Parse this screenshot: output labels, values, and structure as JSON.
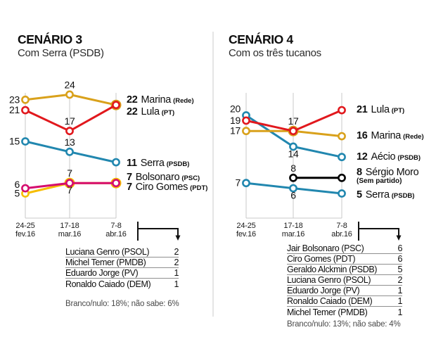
{
  "chart_data": [
    {
      "type": "line",
      "title": "CENÁRIO 3",
      "subtitle": "Com Serra (PSDB)",
      "x_tick_labels": [
        [
          "24-25",
          "fev.16"
        ],
        [
          "17-18",
          "mar.16"
        ],
        [
          "7-8",
          "abr.16"
        ]
      ],
      "ylim": [
        0,
        26
      ],
      "grid": "vertical",
      "series": [
        {
          "name": "Serra",
          "party": "PSDB",
          "color": "#2187af",
          "values": [
            15,
            13,
            11
          ],
          "point_labels": [
            {
              "text": "15",
              "pos": "left"
            },
            {
              "text": "13",
              "pos": "above"
            },
            null
          ]
        },
        {
          "name": "Ciro Gomes",
          "party": "PDT",
          "color": "#f6bd00",
          "values": [
            5,
            7,
            7
          ],
          "point_labels": [
            {
              "text": "5",
              "pos": "left"
            },
            {
              "text": "7",
              "pos": "below"
            },
            null
          ]
        },
        {
          "name": "Bolsonaro",
          "party": "PSC",
          "color": "#d50c6e",
          "values": [
            6,
            7,
            7
          ],
          "point_labels": [
            {
              "text": "6",
              "pos": "left",
              "dy": -5
            },
            {
              "text": "7",
              "pos": "above"
            },
            null
          ]
        },
        {
          "name": "Marina",
          "party": "Rede",
          "color": "#d9a11b",
          "values": [
            23,
            24,
            22
          ],
          "point_labels": [
            {
              "text": "23",
              "pos": "left"
            },
            {
              "text": "24",
              "pos": "above"
            },
            null
          ]
        },
        {
          "name": "Lula",
          "party": "PT",
          "color": "#e1181d",
          "values": [
            21,
            17,
            22
          ],
          "point_labels": [
            {
              "text": "21",
              "pos": "left"
            },
            {
              "text": "17",
              "pos": "above"
            },
            null
          ]
        }
      ],
      "end_labels": [
        {
          "value": "22",
          "name": "Marina",
          "party": "(Rede)"
        },
        {
          "value": "22",
          "name": "Lula",
          "party": "(PT)"
        },
        {
          "value": "11",
          "name": "Serra",
          "party": "(PSDB)"
        },
        {
          "value": "7",
          "name": "Bolsonaro",
          "party": "(PSC)"
        },
        {
          "value": "7",
          "name": "Ciro Gomes",
          "party": "(PDT)"
        }
      ],
      "table": {
        "rows": [
          [
            "Luciana Genro (PSOL)",
            "2"
          ],
          [
            "Michel Temer (PMDB)",
            "2"
          ],
          [
            "Eduardo Jorge (PV)",
            "1"
          ],
          [
            "Ronaldo Caiado (DEM)",
            "1"
          ]
        ]
      },
      "note": "Branco/nulo: 18%; não sabe: 6%"
    },
    {
      "type": "line",
      "title": "CENÁRIO 4",
      "subtitle": "Com os três tucanos",
      "x_tick_labels": [
        [
          "24-25",
          "fev.16"
        ],
        [
          "17-18",
          "mar.16"
        ],
        [
          "7-8",
          "abr.16"
        ]
      ],
      "ylim": [
        0,
        26
      ],
      "grid": "vertical",
      "series": [
        {
          "name": "Aécio",
          "party": "PSDB",
          "color": "#2187af",
          "values": [
            20,
            14,
            12
          ],
          "point_labels": [
            {
              "text": "20",
              "pos": "left",
              "dy": -9
            },
            {
              "text": "14",
              "pos": "below"
            },
            null
          ]
        },
        {
          "name": "Serra",
          "party": "PSDB",
          "color": "#2187af",
          "values": [
            7,
            6,
            5
          ],
          "point_labels": [
            {
              "text": "7",
              "pos": "left"
            },
            {
              "text": "6",
              "pos": "below"
            },
            null
          ]
        },
        {
          "name": "Marina",
          "party": "Rede",
          "color": "#d9a11b",
          "values": [
            17,
            17,
            16
          ],
          "point_labels": [
            {
              "text": "17",
              "pos": "left"
            },
            null,
            null
          ]
        },
        {
          "name": "Sérgio Moro",
          "party": "Sem partido",
          "color": "#000000",
          "values": [
            null,
            8,
            8
          ],
          "point_labels": [
            null,
            {
              "text": "8",
              "pos": "above"
            },
            null
          ]
        },
        {
          "name": "Lula",
          "party": "PT",
          "color": "#e1181d",
          "values": [
            19,
            17,
            21
          ],
          "point_labels": [
            {
              "text": "19",
              "pos": "left"
            },
            {
              "text": "17",
              "pos": "above"
            },
            null
          ]
        }
      ],
      "end_labels": [
        {
          "value": "21",
          "name": "Lula",
          "party": "(PT)"
        },
        {
          "value": "16",
          "name": "Marina",
          "party": "(Rede)"
        },
        {
          "value": "12",
          "name": "Aécio",
          "party": "(PSDB)"
        },
        {
          "value": "8",
          "name": "Sérgio Moro",
          "party": "",
          "sub": "(Sem partido)"
        },
        {
          "value": "5",
          "name": "Serra",
          "party": "(PSDB)"
        }
      ],
      "table": {
        "rows": [
          [
            "Jair Bolsonaro (PSC)",
            "6"
          ],
          [
            "Ciro Gomes (PDT)",
            "6"
          ],
          [
            "Geraldo Alckmin (PSDB)",
            "5"
          ],
          [
            "Luciana Genro (PSOL)",
            "2"
          ],
          [
            "Eduardo Jorge (PV)",
            "1"
          ],
          [
            "Ronaldo Caiado (DEM)",
            "1"
          ],
          [
            "Michel Temer (PMDB)",
            "1"
          ]
        ]
      },
      "note": "Branco/nulo: 13%; não sabe: 4%"
    }
  ]
}
